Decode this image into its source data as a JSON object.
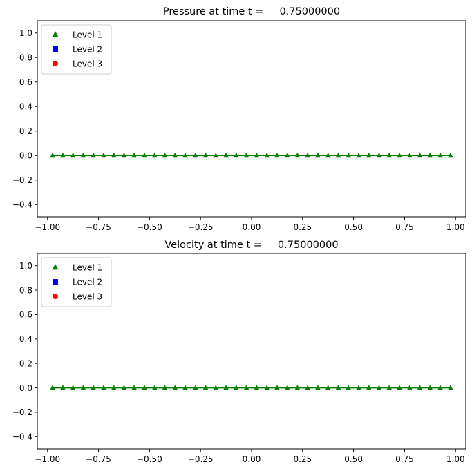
{
  "chart_data": [
    {
      "type": "line",
      "title": "Pressure at time t =     0.75000000",
      "xlabel": "",
      "ylabel": "",
      "xlim": [
        -1.05,
        1.05
      ],
      "ylim": [
        -0.5,
        1.1
      ],
      "xticks": [
        "−1.00",
        "−0.75",
        "−0.50",
        "−0.25",
        "0.00",
        "0.25",
        "0.50",
        "0.75",
        "1.00"
      ],
      "xtick_values": [
        -1.0,
        -0.75,
        -0.5,
        -0.25,
        0.0,
        0.25,
        0.5,
        0.75,
        1.0
      ],
      "yticks": [
        "−0.4",
        "−0.2",
        "0.0",
        "0.2",
        "0.4",
        "0.6",
        "0.8",
        "1.0"
      ],
      "ytick_values": [
        -0.4,
        -0.2,
        0.0,
        0.2,
        0.4,
        0.6,
        0.8,
        1.0
      ],
      "grid": false,
      "legend_position": "top-left",
      "series": [
        {
          "name": "Level 1",
          "marker": "triangle",
          "color": "#008000",
          "x": [
            -0.975,
            -0.925,
            -0.875,
            -0.825,
            -0.775,
            -0.725,
            -0.675,
            -0.625,
            -0.575,
            -0.525,
            -0.475,
            -0.425,
            -0.375,
            -0.325,
            -0.275,
            -0.225,
            -0.175,
            -0.125,
            -0.075,
            -0.025,
            0.025,
            0.075,
            0.125,
            0.175,
            0.225,
            0.275,
            0.325,
            0.375,
            0.425,
            0.475,
            0.525,
            0.575,
            0.625,
            0.675,
            0.725,
            0.775,
            0.825,
            0.875,
            0.925,
            0.975
          ],
          "y": [
            0,
            0,
            0,
            0,
            0,
            0,
            0,
            0,
            0,
            0,
            0,
            0,
            0,
            0,
            0,
            0,
            0,
            0,
            0,
            0,
            0,
            0,
            0,
            0,
            0,
            0,
            0,
            0,
            0,
            0,
            0,
            0,
            0,
            0,
            0,
            0,
            0,
            0,
            0,
            0
          ]
        },
        {
          "name": "Level 2",
          "marker": "square",
          "color": "#0000ff",
          "x": [],
          "y": []
        },
        {
          "name": "Level 3",
          "marker": "circle",
          "color": "#ff0000",
          "x": [],
          "y": []
        }
      ]
    },
    {
      "type": "line",
      "title": "Velocity at time t =     0.75000000",
      "xlabel": "",
      "ylabel": "",
      "xlim": [
        -1.05,
        1.05
      ],
      "ylim": [
        -0.5,
        1.1
      ],
      "xticks": [
        "−1.00",
        "−0.75",
        "−0.50",
        "−0.25",
        "0.00",
        "0.25",
        "0.50",
        "0.75",
        "1.00"
      ],
      "xtick_values": [
        -1.0,
        -0.75,
        -0.5,
        -0.25,
        0.0,
        0.25,
        0.5,
        0.75,
        1.0
      ],
      "yticks": [
        "−0.4",
        "−0.2",
        "0.0",
        "0.2",
        "0.4",
        "0.6",
        "0.8",
        "1.0"
      ],
      "ytick_values": [
        -0.4,
        -0.2,
        0.0,
        0.2,
        0.4,
        0.6,
        0.8,
        1.0
      ],
      "grid": false,
      "legend_position": "top-left",
      "series": [
        {
          "name": "Level 1",
          "marker": "triangle",
          "color": "#008000",
          "x": [
            -0.975,
            -0.925,
            -0.875,
            -0.825,
            -0.775,
            -0.725,
            -0.675,
            -0.625,
            -0.575,
            -0.525,
            -0.475,
            -0.425,
            -0.375,
            -0.325,
            -0.275,
            -0.225,
            -0.175,
            -0.125,
            -0.075,
            -0.025,
            0.025,
            0.075,
            0.125,
            0.175,
            0.225,
            0.275,
            0.325,
            0.375,
            0.425,
            0.475,
            0.525,
            0.575,
            0.625,
            0.675,
            0.725,
            0.775,
            0.825,
            0.875,
            0.925,
            0.975
          ],
          "y": [
            0,
            0,
            0,
            0,
            0,
            0,
            0,
            0,
            0,
            0,
            0,
            0,
            0,
            0,
            0,
            0,
            0,
            0,
            0,
            0,
            0,
            0,
            0,
            0,
            0,
            0,
            0,
            0,
            0,
            0,
            0,
            0,
            0,
            0,
            0,
            0,
            0,
            0,
            0,
            0
          ]
        },
        {
          "name": "Level 2",
          "marker": "square",
          "color": "#0000ff",
          "x": [],
          "y": []
        },
        {
          "name": "Level 3",
          "marker": "circle",
          "color": "#ff0000",
          "x": [],
          "y": []
        }
      ]
    }
  ]
}
